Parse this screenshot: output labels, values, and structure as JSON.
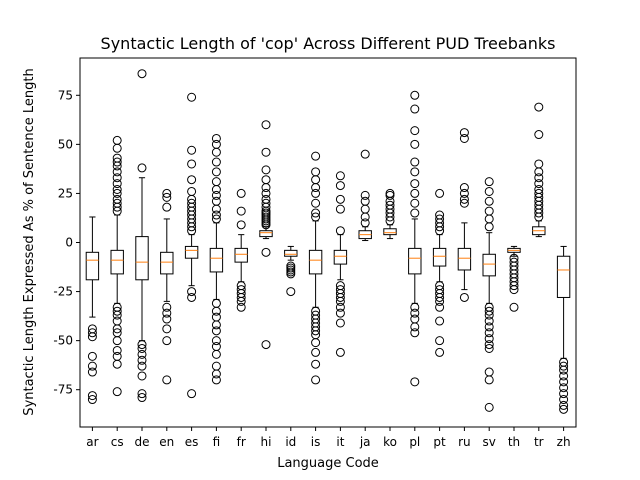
{
  "chart_data": {
    "type": "boxplot",
    "title": "Syntactic Length of 'cop' Across Different PUD Treebanks",
    "xlabel": "Language Code",
    "ylabel": "Syntactic Length Expressed As % of Sentence Length",
    "ylim": [
      -94,
      94
    ],
    "yticks": [
      -75,
      -50,
      -25,
      0,
      25,
      50,
      75
    ],
    "grid": false,
    "colors": {
      "box": "#000000",
      "median": "#ff7f0e",
      "flier": "#000000"
    },
    "categories": [
      "ar",
      "cs",
      "de",
      "en",
      "es",
      "fi",
      "fr",
      "hi",
      "id",
      "is",
      "it",
      "ja",
      "ko",
      "pl",
      "pt",
      "ru",
      "sv",
      "th",
      "tr",
      "zh"
    ],
    "boxes": [
      {
        "label": "ar",
        "whislo": -38,
        "q1": -19,
        "median": -9,
        "q3": -5,
        "whishi": 13,
        "fliers": [
          -44,
          -46,
          -48,
          -58,
          -63,
          -66,
          -78,
          -80
        ]
      },
      {
        "label": "cs",
        "whislo": -31,
        "q1": -16,
        "median": -9,
        "q3": -4,
        "whishi": 14,
        "fliers": [
          -33,
          -35,
          -37,
          -40,
          -44,
          -46,
          -50,
          -55,
          -58,
          -62,
          -76,
          16,
          18,
          20,
          22,
          25,
          27,
          30,
          33,
          36,
          39,
          41,
          43,
          48,
          52
        ]
      },
      {
        "label": "de",
        "whislo": -50,
        "q1": -19,
        "median": -10,
        "q3": 3,
        "whishi": 33,
        "fliers": [
          -52,
          -54,
          -57,
          -60,
          -63,
          -68,
          -77,
          -79,
          38,
          86
        ]
      },
      {
        "label": "en",
        "whislo": -30,
        "q1": -16,
        "median": -10,
        "q3": -5,
        "whishi": 12,
        "fliers": [
          -33,
          -36,
          -39,
          -44,
          -50,
          -70,
          18,
          23,
          25
        ]
      },
      {
        "label": "es",
        "whislo": -22,
        "q1": -8,
        "median": -4,
        "q3": -2,
        "whishi": 4,
        "fliers": [
          -25,
          -28,
          -77,
          6,
          8,
          10,
          12,
          14,
          16,
          18,
          20,
          22,
          26,
          32,
          40,
          47,
          74
        ]
      },
      {
        "label": "fi",
        "whislo": -29,
        "q1": -15,
        "median": -8,
        "q3": -3,
        "whishi": 10,
        "fliers": [
          -31,
          -35,
          -38,
          -42,
          -45,
          -50,
          -53,
          -57,
          -63,
          -67,
          -70,
          12,
          14,
          17,
          21,
          24,
          27,
          31,
          36,
          41,
          46,
          50,
          53
        ]
      },
      {
        "label": "fr",
        "whislo": -20,
        "q1": -10,
        "median": -6,
        "q3": -3,
        "whishi": 4,
        "fliers": [
          -22,
          -24,
          -26,
          -28,
          -30,
          -33,
          9,
          16,
          25
        ]
      },
      {
        "label": "hi",
        "whislo": 2,
        "q1": 3,
        "median": 5,
        "q3": 6,
        "whishi": 8,
        "fliers": [
          -5,
          -52,
          9,
          10,
          11,
          12,
          13,
          14,
          15,
          16,
          18,
          20,
          22,
          25,
          28,
          32,
          37,
          46,
          60
        ]
      },
      {
        "label": "id",
        "whislo": -9,
        "q1": -7,
        "median": -6,
        "q3": -4,
        "whishi": -2,
        "fliers": [
          -12,
          -13,
          -14,
          -15,
          -16,
          -25
        ]
      },
      {
        "label": "is",
        "whislo": -33,
        "q1": -16,
        "median": -9,
        "q3": -4,
        "whishi": 11,
        "fliers": [
          -35,
          -37,
          -39,
          -41,
          -43,
          -45,
          -47,
          -51,
          -56,
          -62,
          -70,
          13,
          15,
          20,
          25,
          28,
          32,
          36,
          44
        ]
      },
      {
        "label": "it",
        "whislo": -19,
        "q1": -11,
        "median": -7,
        "q3": -4,
        "whishi": 4,
        "fliers": [
          -22,
          -24,
          -26,
          -28,
          -30,
          -33,
          -36,
          -41,
          -56,
          6,
          17,
          22,
          29,
          34
        ]
      },
      {
        "label": "ja",
        "whislo": 1,
        "q1": 2,
        "median": 4,
        "q3": 6,
        "whishi": 8,
        "fliers": [
          10,
          13,
          17,
          21,
          24,
          45
        ]
      },
      {
        "label": "ko",
        "whislo": 2,
        "q1": 4,
        "median": 5,
        "q3": 7,
        "whishi": 9,
        "fliers": [
          11,
          13,
          15,
          17,
          19,
          21,
          24,
          25
        ]
      },
      {
        "label": "pl",
        "whislo": -31,
        "q1": -16,
        "median": -8,
        "q3": -3,
        "whishi": 12,
        "fliers": [
          -33,
          -36,
          -39,
          -43,
          -46,
          -71,
          15,
          20,
          25,
          30,
          36,
          41,
          50,
          57,
          68,
          75
        ]
      },
      {
        "label": "pt",
        "whislo": -20,
        "q1": -12,
        "median": -7,
        "q3": -3,
        "whishi": 4,
        "fliers": [
          -22,
          -24,
          -26,
          -28,
          -30,
          -33,
          -40,
          -50,
          -56,
          6,
          8,
          10,
          12,
          14,
          25
        ]
      },
      {
        "label": "ru",
        "whislo": -24,
        "q1": -14,
        "median": -8,
        "q3": -3,
        "whishi": 10,
        "fliers": [
          -28,
          20,
          22,
          25,
          28,
          53,
          56
        ]
      },
      {
        "label": "sv",
        "whislo": -31,
        "q1": -17,
        "median": -11,
        "q3": -6,
        "whishi": 5,
        "fliers": [
          -33,
          -35,
          -37,
          -40,
          -43,
          -46,
          -49,
          -52,
          -54,
          -66,
          -70,
          -84,
          8,
          12,
          16,
          21,
          26,
          31
        ]
      },
      {
        "label": "th",
        "whislo": -7,
        "q1": -5,
        "median": -4,
        "q3": -3,
        "whishi": -2,
        "fliers": [
          -8,
          -10,
          -12,
          -14,
          -16,
          -18,
          -20,
          -22,
          -24,
          -33
        ]
      },
      {
        "label": "tr",
        "whislo": 3,
        "q1": 4,
        "median": 6,
        "q3": 8,
        "whishi": 11,
        "fliers": [
          13,
          15,
          17,
          19,
          21,
          23,
          25,
          27,
          30,
          33,
          36,
          40,
          55,
          69
        ]
      },
      {
        "label": "zh",
        "whislo": -59,
        "q1": -28,
        "median": -14,
        "q3": -7,
        "whishi": -2,
        "fliers": [
          -61,
          -63,
          -65,
          -68,
          -71,
          -74,
          -77,
          -80,
          -83,
          -85
        ]
      }
    ]
  }
}
